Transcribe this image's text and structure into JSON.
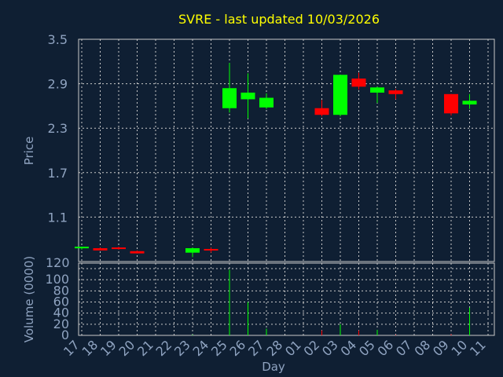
{
  "chart_data": [
    {
      "type": "candlestick",
      "title": "SVRE - last updated 10/03/2026",
      "ylabel": "Price",
      "ylim": [
        0.5,
        3.5
      ],
      "yticks": [
        "3.5",
        "2.9",
        "2.3",
        "1.7",
        "1.1"
      ],
      "ytick_values": [
        3.5,
        2.9,
        2.3,
        1.7,
        1.1
      ],
      "grid": true,
      "colors": {
        "up": "#00ff00",
        "down": "#ff0000",
        "title": "#ffff00",
        "axis_text": "#8fa3c0"
      },
      "candles": [
        {
          "day": "17",
          "open": 0.69,
          "high": 0.7,
          "low": 0.66,
          "close": 0.7
        },
        {
          "day": "18",
          "open": 0.68,
          "high": 0.69,
          "low": 0.65,
          "close": 0.65
        },
        {
          "day": "19",
          "open": 0.69,
          "high": 0.7,
          "low": 0.66,
          "close": 0.67
        },
        {
          "day": "20",
          "open": 0.64,
          "high": 0.65,
          "low": 0.61,
          "close": 0.61
        },
        {
          "day": "23",
          "open": 0.62,
          "high": 0.69,
          "low": 0.56,
          "close": 0.68
        },
        {
          "day": "24",
          "open": 0.67,
          "high": 0.69,
          "low": 0.62,
          "close": 0.66
        },
        {
          "day": "25",
          "open": 2.57,
          "high": 3.18,
          "low": 2.51,
          "close": 2.84
        },
        {
          "day": "26",
          "open": 2.69,
          "high": 3.04,
          "low": 2.43,
          "close": 2.78
        },
        {
          "day": "27",
          "open": 2.58,
          "high": 2.77,
          "low": 2.56,
          "close": 2.71
        },
        {
          "day": "02",
          "open": 2.57,
          "high": 2.68,
          "low": 2.46,
          "close": 2.48
        },
        {
          "day": "03",
          "open": 2.48,
          "high": 3.02,
          "low": 2.46,
          "close": 3.02
        },
        {
          "day": "04",
          "open": 2.97,
          "high": 3.05,
          "low": 2.82,
          "close": 2.86
        },
        {
          "day": "05",
          "open": 2.78,
          "high": 2.86,
          "low": 2.64,
          "close": 2.85
        },
        {
          "day": "06",
          "open": 2.81,
          "high": 2.83,
          "low": 2.69,
          "close": 2.76
        },
        {
          "day": "09",
          "open": 2.76,
          "high": 2.76,
          "low": 2.47,
          "close": 2.5
        },
        {
          "day": "10",
          "open": 2.62,
          "high": 2.76,
          "low": 2.56,
          "close": 2.67
        }
      ]
    },
    {
      "type": "bar",
      "ylabel": "Volume (0000)",
      "xlabel": "Day",
      "ylim": [
        0,
        120
      ],
      "yticks": [
        "120",
        "100",
        "80",
        "60",
        "40",
        "20",
        "0"
      ],
      "ytick_values": [
        120,
        100,
        80,
        60,
        40,
        20,
        0
      ],
      "grid": true,
      "categories": [
        "17",
        "18",
        "19",
        "20",
        "21",
        "22",
        "23",
        "24",
        "25",
        "26",
        "27",
        "28",
        "01",
        "02",
        "03",
        "04",
        "05",
        "06",
        "07",
        "08",
        "09",
        "10",
        "11"
      ],
      "volumes": [
        {
          "day": "17",
          "value": 0
        },
        {
          "day": "18",
          "value": 0
        },
        {
          "day": "19",
          "value": 0
        },
        {
          "day": "20",
          "value": 0
        },
        {
          "day": "23",
          "value": 1
        },
        {
          "day": "24",
          "value": 0
        },
        {
          "day": "25",
          "value": 118
        },
        {
          "day": "26",
          "value": 60
        },
        {
          "day": "27",
          "value": 12
        },
        {
          "day": "02",
          "value": 9
        },
        {
          "day": "03",
          "value": 20
        },
        {
          "day": "04",
          "value": 9
        },
        {
          "day": "05",
          "value": 10
        },
        {
          "day": "06",
          "value": 1
        },
        {
          "day": "09",
          "value": 2
        },
        {
          "day": "10",
          "value": 50
        }
      ]
    }
  ]
}
